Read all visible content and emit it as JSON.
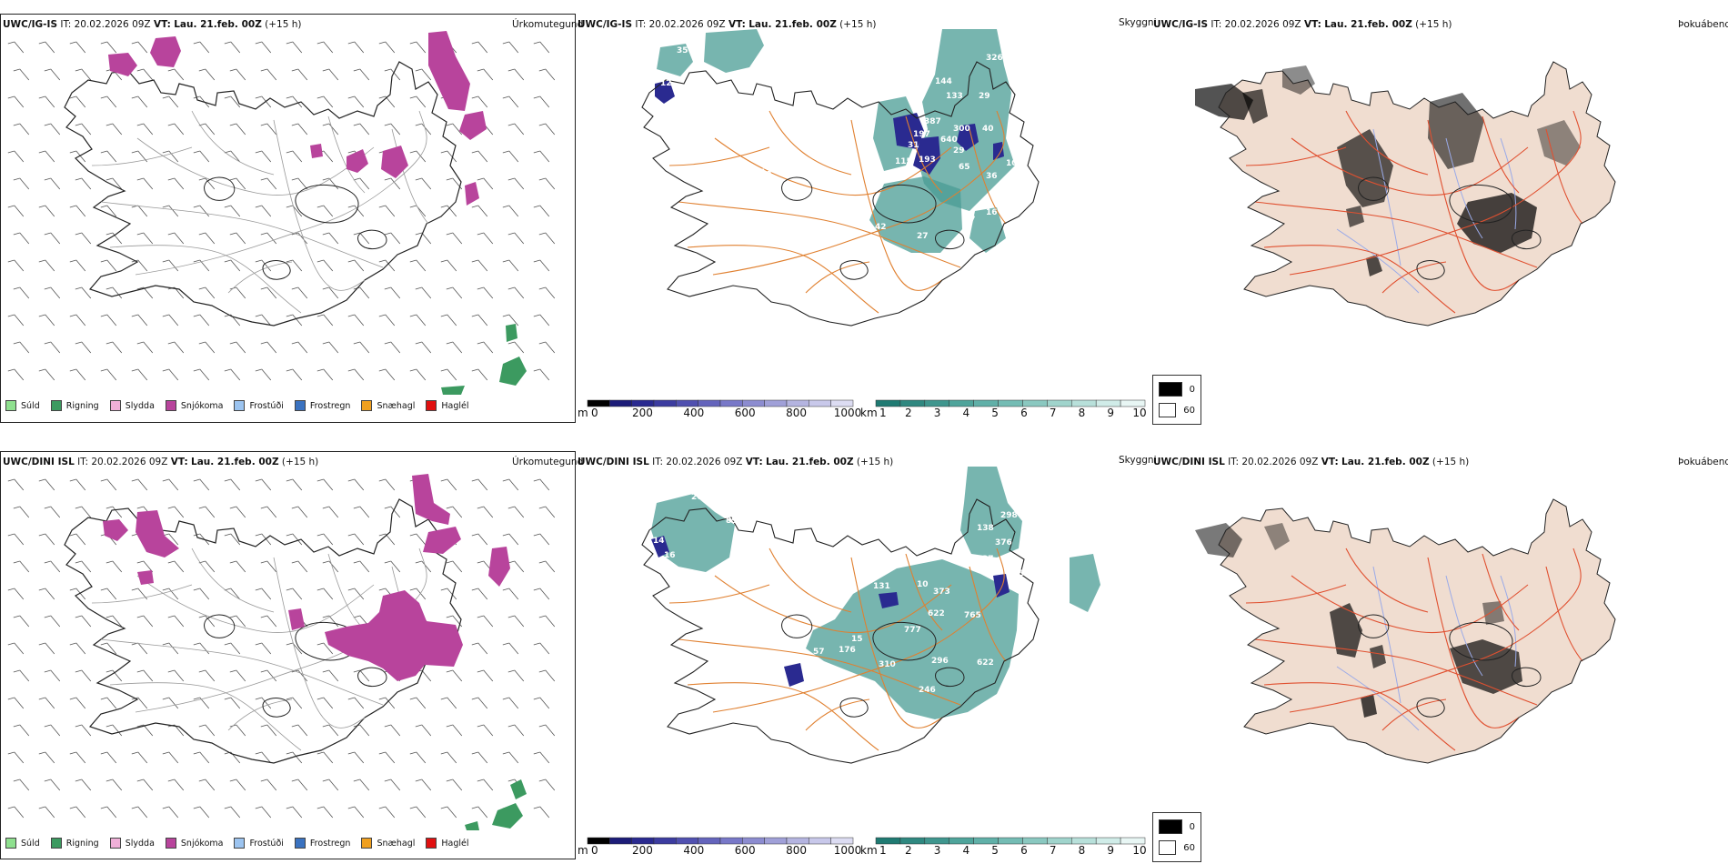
{
  "rows": [
    {
      "id": "ig",
      "precip": {
        "title_model": "UWC/IG-IS",
        "title_it_label": "IT:",
        "title_it_value": "20.02.2026 09Z",
        "title_vt_label": "VT:",
        "title_vt_value": "Lau. 21.feb. 00Z",
        "title_lead": "(+15 h)",
        "name": "Úrkomutegund"
      },
      "vis": {
        "title_model": "UWC/IG-IS",
        "title_it_label": "IT:",
        "title_it_value": "20.02.2026 09Z",
        "title_vt_label": "VT:",
        "title_vt_value": "Lau. 21.feb. 00Z",
        "title_lead": "(+15 h)",
        "name": "Skyggni",
        "labels": [
          "35",
          "144",
          "133",
          "326",
          "29",
          "12",
          "197",
          "387",
          "300",
          "29",
          "640",
          "31",
          "65",
          "193",
          "115",
          "40",
          "43",
          "36",
          "16",
          "27",
          "27",
          "13",
          "42",
          "10"
        ]
      },
      "fog": {
        "title_model": "UWC/IG-IS",
        "title_it_label": "IT:",
        "title_it_value": "20.02.2026 09Z",
        "title_vt_label": "VT:",
        "title_vt_value": "Lau. 21.feb. 00Z",
        "title_lead": "(+15 h)",
        "name": "Þokuábendi"
      }
    },
    {
      "id": "dini",
      "precip": {
        "title_model": "UWC/DINI ISL",
        "title_it_label": "IT:",
        "title_it_value": "20.02.2026 09Z",
        "title_vt_label": "VT:",
        "title_vt_value": "Lau. 21.feb. 00Z",
        "title_lead": "(+15 h)",
        "name": "Úrkomutegund"
      },
      "vis": {
        "title_model": "UWC/DINI ISL",
        "title_it_label": "IT:",
        "title_it_value": "20.02.2026 09Z",
        "title_vt_label": "VT:",
        "title_vt_value": "Lau. 21.feb. 00Z",
        "title_lead": "(+15 h)",
        "name": "Skyggni",
        "labels": [
          "207",
          "89",
          "14",
          "16",
          "138",
          "298",
          "376",
          "37",
          "150",
          "131",
          "10",
          "373",
          "622",
          "765",
          "777",
          "176",
          "15",
          "310",
          "296",
          "622",
          "246",
          "57"
        ]
      },
      "fog": {
        "title_model": "UWC/DINI ISL",
        "title_it_label": "IT:",
        "title_it_value": "20.02.2026 09Z",
        "title_vt_label": "VT:",
        "title_vt_value": "Lau. 21.feb. 00Z",
        "title_lead": "(+15 h)",
        "name": "Þokuábendi"
      }
    }
  ],
  "precip_legend": [
    {
      "label": "Súld",
      "color": "#8fe08f"
    },
    {
      "label": "Rigning",
      "color": "#3c9a60"
    },
    {
      "label": "Slydda",
      "color": "#f0b0d8"
    },
    {
      "label": "Snjókoma",
      "color": "#b8449c"
    },
    {
      "label": "Frostúði",
      "color": "#9cc4f0"
    },
    {
      "label": "Frostregn",
      "color": "#3a72c0"
    },
    {
      "label": "Snæhagl",
      "color": "#f0a020"
    },
    {
      "label": "Haglél",
      "color": "#e01010"
    }
  ],
  "ceiling_colorbar": {
    "unit": "m",
    "ticks": [
      "0",
      "200",
      "400",
      "600",
      "800",
      "1000"
    ],
    "colors": [
      "#000000",
      "#1c1c78",
      "#2a2a90",
      "#3c3ca0",
      "#5050b0",
      "#6464bc",
      "#7878c8",
      "#8c8cd0",
      "#a0a0d8",
      "#b4b4e0",
      "#c8c8ea",
      "#dcdcf2"
    ]
  },
  "vis_colorbar": {
    "unit": "km",
    "ticks": [
      "1",
      "2",
      "3",
      "4",
      "5",
      "6",
      "7",
      "8",
      "9",
      "10"
    ],
    "colors": [
      "#1f7a72",
      "#2f8880",
      "#3f968e",
      "#4fa49b",
      "#60b0a8",
      "#74bcb4",
      "#8ac8c0",
      "#a0d4cc",
      "#b8e0da",
      "#d0ece8",
      "#e8f6f4"
    ]
  },
  "fog_legend": [
    {
      "label": "0",
      "color": "#000000"
    },
    {
      "label": "60",
      "color": "#ffffff"
    }
  ],
  "colors": {
    "snow": "#b8449c",
    "rain": "#3c9a60",
    "ceiling": "#2a2a90",
    "vis": "#4a9c94",
    "road": "#e08030",
    "fog_land": "#f0ddd0",
    "fog_road": "#e05030",
    "fog_river": "#9aaae8",
    "coast": "#222222"
  }
}
